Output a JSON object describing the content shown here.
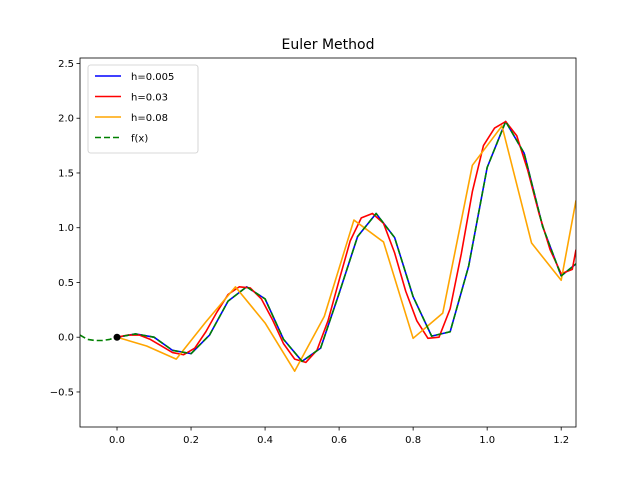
{
  "chart_data": {
    "type": "line",
    "title": "Euler Method",
    "xlabel": "",
    "ylabel": "",
    "xlim": [
      -0.1,
      1.24
    ],
    "ylim": [
      -0.82,
      2.55
    ],
    "xticks": [
      0.0,
      0.2,
      0.4,
      0.6,
      0.8,
      1.0,
      1.2
    ],
    "xtick_labels": [
      "0.0",
      "0.2",
      "0.4",
      "0.6",
      "0.8",
      "1.0",
      "1.2"
    ],
    "yticks": [
      -0.5,
      0.0,
      0.5,
      1.0,
      1.5,
      2.0,
      2.5
    ],
    "ytick_labels": [
      "−0.5",
      "0.0",
      "0.5",
      "1.0",
      "1.5",
      "2.0",
      "2.5"
    ],
    "grid": false,
    "legend_position": "top-left",
    "initial_point": {
      "x": 0.0,
      "y": 0.0,
      "color": "#000000"
    },
    "series": [
      {
        "name": "h=0.005",
        "color": "#0000ff",
        "style": "solid",
        "x": [
          0.0,
          0.05,
          0.1,
          0.15,
          0.2,
          0.25,
          0.3,
          0.35,
          0.4,
          0.45,
          0.5,
          0.55,
          0.6,
          0.65,
          0.7,
          0.75,
          0.8,
          0.85,
          0.9,
          0.95,
          1.0,
          1.05,
          1.1,
          1.15,
          1.2,
          1.24
        ],
        "y": [
          0.0,
          0.03,
          0.0,
          -0.12,
          -0.15,
          0.02,
          0.33,
          0.46,
          0.35,
          -0.02,
          -0.22,
          -0.1,
          0.4,
          0.92,
          1.13,
          0.91,
          0.37,
          0.01,
          0.05,
          0.65,
          1.55,
          1.97,
          1.68,
          1.01,
          0.56,
          0.67
        ]
      },
      {
        "name": "h=0.03",
        "color": "#ff0000",
        "style": "solid",
        "x": [
          0.0,
          0.03,
          0.06,
          0.09,
          0.12,
          0.15,
          0.18,
          0.21,
          0.24,
          0.27,
          0.3,
          0.33,
          0.36,
          0.39,
          0.42,
          0.45,
          0.48,
          0.51,
          0.54,
          0.57,
          0.6,
          0.63,
          0.66,
          0.69,
          0.72,
          0.75,
          0.78,
          0.81,
          0.84,
          0.87,
          0.9,
          0.93,
          0.96,
          0.99,
          1.02,
          1.05,
          1.08,
          1.11,
          1.14,
          1.17,
          1.2,
          1.23,
          1.24
        ],
        "y": [
          0.0,
          0.02,
          0.02,
          -0.02,
          -0.08,
          -0.14,
          -0.16,
          -0.1,
          0.05,
          0.23,
          0.39,
          0.46,
          0.45,
          0.35,
          0.16,
          -0.06,
          -0.2,
          -0.23,
          -0.12,
          0.15,
          0.52,
          0.88,
          1.09,
          1.13,
          1.04,
          0.77,
          0.42,
          0.15,
          -0.01,
          0.0,
          0.26,
          0.76,
          1.33,
          1.75,
          1.91,
          1.97,
          1.84,
          1.52,
          1.13,
          0.8,
          0.58,
          0.62,
          0.8
        ]
      },
      {
        "name": "h=0.08",
        "color": "#ffa500",
        "style": "solid",
        "x": [
          0.0,
          0.08,
          0.16,
          0.24,
          0.32,
          0.4,
          0.48,
          0.56,
          0.64,
          0.72,
          0.8,
          0.88,
          0.96,
          1.04,
          1.12,
          1.2,
          1.24
        ],
        "y": [
          0.0,
          -0.08,
          -0.2,
          0.14,
          0.46,
          0.13,
          -0.31,
          0.19,
          1.07,
          0.87,
          -0.01,
          0.22,
          1.57,
          1.93,
          0.86,
          0.52,
          1.25
        ]
      },
      {
        "name": "f(x)",
        "color": "#008000",
        "style": "dashed",
        "x": [
          -0.1,
          -0.08,
          -0.06,
          -0.04,
          -0.02,
          0.0,
          0.05,
          0.1,
          0.15,
          0.2,
          0.25,
          0.3,
          0.35,
          0.4,
          0.45,
          0.5,
          0.55,
          0.6,
          0.65,
          0.7,
          0.75,
          0.8,
          0.85,
          0.9,
          0.95,
          1.0,
          1.05,
          1.1,
          1.15,
          1.2,
          1.24
        ],
        "y": [
          0.02,
          -0.02,
          -0.03,
          -0.03,
          -0.02,
          0.0,
          0.03,
          0.0,
          -0.12,
          -0.15,
          0.02,
          0.33,
          0.46,
          0.35,
          -0.02,
          -0.22,
          -0.1,
          0.4,
          0.92,
          1.13,
          0.91,
          0.37,
          0.01,
          0.05,
          0.65,
          1.55,
          1.97,
          1.68,
          1.01,
          0.56,
          0.67
        ]
      }
    ]
  }
}
